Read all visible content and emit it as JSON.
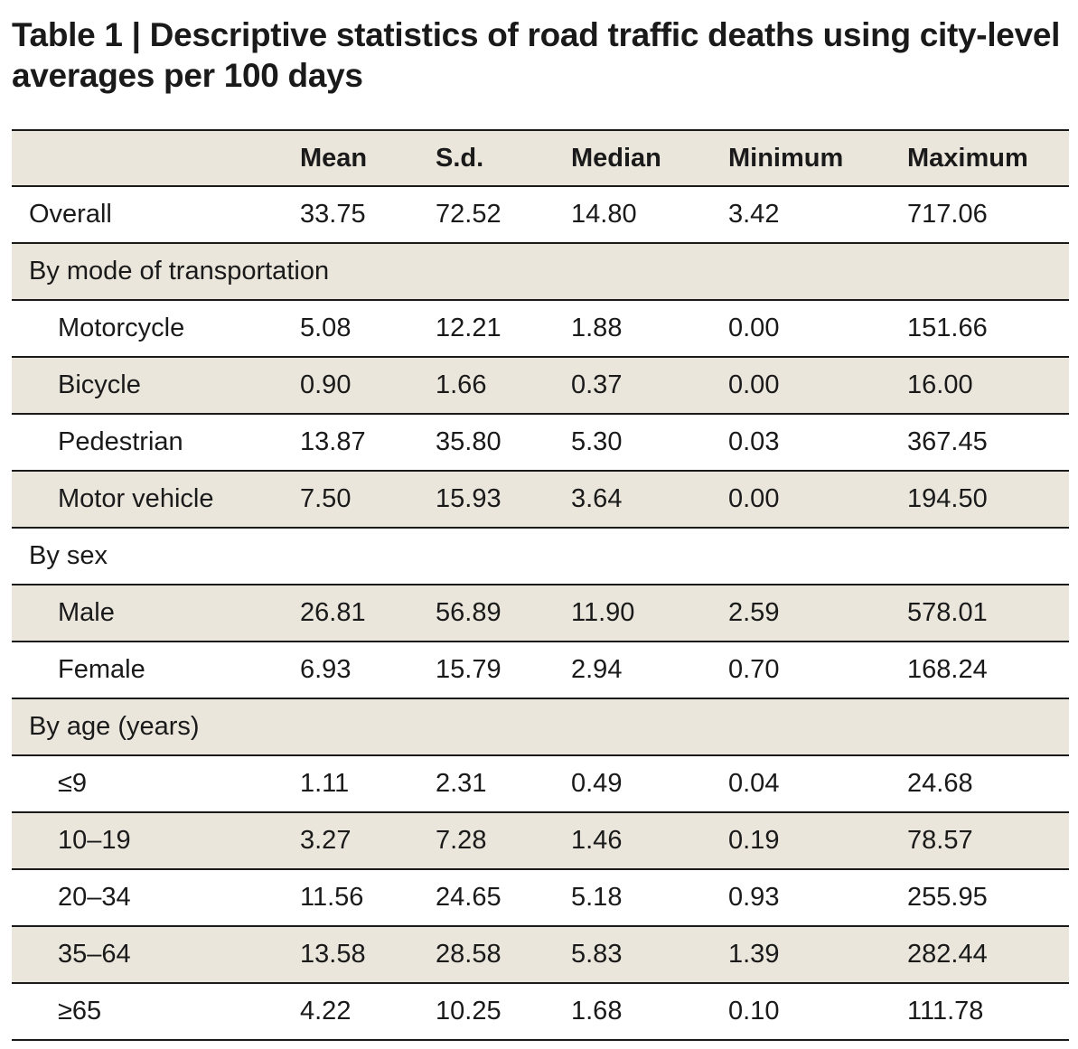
{
  "title": "Table 1 | Descriptive statistics of road traffic deaths using city-level averages per 100 days",
  "colors": {
    "shaded_row": "#ebe6dc",
    "rule": "#1a1a1a",
    "text": "#1a1a1a"
  },
  "table": {
    "columns": [
      "",
      "Mean",
      "S.d.",
      "Median",
      "Minimum",
      "Maximum"
    ],
    "rows": [
      {
        "label": "Overall",
        "values": [
          "33.75",
          "72.52",
          "14.80",
          "3.42",
          "717.06"
        ]
      },
      {
        "label": "By mode of transportation",
        "values": [
          "",
          "",
          "",
          "",
          ""
        ]
      },
      {
        "label": "Motorcycle",
        "values": [
          "5.08",
          "12.21",
          "1.88",
          "0.00",
          "151.66"
        ]
      },
      {
        "label": "Bicycle",
        "values": [
          "0.90",
          "1.66",
          "0.37",
          "0.00",
          "16.00"
        ]
      },
      {
        "label": "Pedestrian",
        "values": [
          "13.87",
          "35.80",
          "5.30",
          "0.03",
          "367.45"
        ]
      },
      {
        "label": "Motor vehicle",
        "values": [
          "7.50",
          "15.93",
          "3.64",
          "0.00",
          "194.50"
        ]
      },
      {
        "label": "By sex",
        "values": [
          "",
          "",
          "",
          "",
          ""
        ]
      },
      {
        "label": "Male",
        "values": [
          "26.81",
          "56.89",
          "11.90",
          "2.59",
          "578.01"
        ]
      },
      {
        "label": "Female",
        "values": [
          "6.93",
          "15.79",
          "2.94",
          "0.70",
          "168.24"
        ]
      },
      {
        "label": "By age (years)",
        "values": [
          "",
          "",
          "",
          "",
          ""
        ]
      },
      {
        "label": "≤9",
        "values": [
          "1.11",
          "2.31",
          "0.49",
          "0.04",
          "24.68"
        ]
      },
      {
        "label": "10–19",
        "values": [
          "3.27",
          "7.28",
          "1.46",
          "0.19",
          "78.57"
        ]
      },
      {
        "label": "20–34",
        "values": [
          "11.56",
          "24.65",
          "5.18",
          "0.93",
          "255.95"
        ]
      },
      {
        "label": "35–64",
        "values": [
          "13.58",
          "28.58",
          "5.83",
          "1.39",
          "282.44"
        ]
      },
      {
        "label": "≥65",
        "values": [
          "4.22",
          "10.25",
          "1.68",
          "0.10",
          "111.78"
        ]
      }
    ]
  }
}
